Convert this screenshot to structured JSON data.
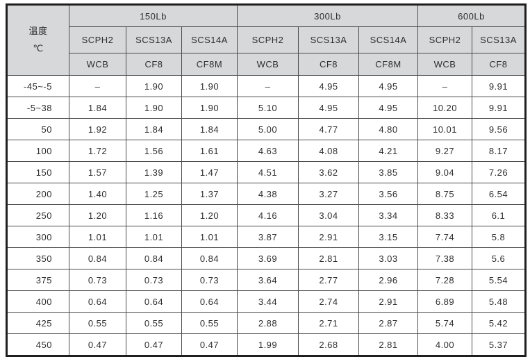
{
  "colors": {
    "header_bg": "#d6d8da",
    "grid_line": "#4a4a4c",
    "outer_border": "#1f1f1f",
    "text": "#2e2e2e",
    "body_bg": "#ffffff"
  },
  "table": {
    "temp_header": {
      "line1": "温度",
      "line2": "℃"
    },
    "empty_value": "–",
    "groups": [
      {
        "label": "150Lb",
        "cols": [
          {
            "grade": "SCPH2",
            "astm": "WCB"
          },
          {
            "grade": "SCS13A",
            "astm": "CF8"
          },
          {
            "grade": "SCS14A",
            "astm": "CF8M"
          }
        ]
      },
      {
        "label": "300Lb",
        "cols": [
          {
            "grade": "SCPH2",
            "astm": "WCB"
          },
          {
            "grade": "SCS13A",
            "astm": "CF8"
          },
          {
            "grade": "SCS14A",
            "astm": "CF8M"
          }
        ]
      },
      {
        "label": "600Lb",
        "cols": [
          {
            "grade": "SCPH2",
            "astm": "WCB"
          },
          {
            "grade": "SCS13A",
            "astm": "CF8"
          }
        ]
      }
    ],
    "rows": [
      {
        "temp": "-45~-5",
        "values": [
          "–",
          "1.90",
          "1.90",
          "–",
          "4.95",
          "4.95",
          "–",
          "9.91"
        ]
      },
      {
        "temp": "-5~38",
        "values": [
          "1.84",
          "1.90",
          "1.90",
          "5.10",
          "4.95",
          "4.95",
          "10.20",
          "9.91"
        ]
      },
      {
        "temp": "50",
        "values": [
          "1.92",
          "1.84",
          "1.84",
          "5.00",
          "4.77",
          "4.80",
          "10.01",
          "9.56"
        ]
      },
      {
        "temp": "100",
        "values": [
          "1.72",
          "1.56",
          "1.61",
          "4.63",
          "4.08",
          "4.21",
          "9.27",
          "8.17"
        ]
      },
      {
        "temp": "150",
        "values": [
          "1.57",
          "1.39",
          "1.47",
          "4.51",
          "3.62",
          "3.85",
          "9.04",
          "7.26"
        ]
      },
      {
        "temp": "200",
        "values": [
          "1.40",
          "1.25",
          "1.37",
          "4.38",
          "3.27",
          "3.56",
          "8.75",
          "6.54"
        ]
      },
      {
        "temp": "250",
        "values": [
          "1.20",
          "1.16",
          "1.20",
          "4.16",
          "3.04",
          "3.34",
          "8.33",
          "6.1"
        ]
      },
      {
        "temp": "300",
        "values": [
          "1.01",
          "1.01",
          "1.01",
          "3.87",
          "2.91",
          "3.15",
          "7.74",
          "5.8"
        ]
      },
      {
        "temp": "350",
        "values": [
          "0.84",
          "0.84",
          "0.84",
          "3.69",
          "2.81",
          "3.03",
          "7.38",
          "5.6"
        ]
      },
      {
        "temp": "375",
        "values": [
          "0.73",
          "0.73",
          "0.73",
          "3.64",
          "2.77",
          "2.96",
          "7.28",
          "5.54"
        ]
      },
      {
        "temp": "400",
        "values": [
          "0.64",
          "0.64",
          "0.64",
          "3.44",
          "2.74",
          "2.91",
          "6.89",
          "5.48"
        ]
      },
      {
        "temp": "425",
        "values": [
          "0.55",
          "0.55",
          "0.55",
          "2.88",
          "2.71",
          "2.87",
          "5.74",
          "5.42"
        ]
      },
      {
        "temp": "450",
        "values": [
          "0.47",
          "0.47",
          "0.47",
          "1.99",
          "2.68",
          "2.81",
          "4.00",
          "5.37"
        ]
      }
    ]
  }
}
